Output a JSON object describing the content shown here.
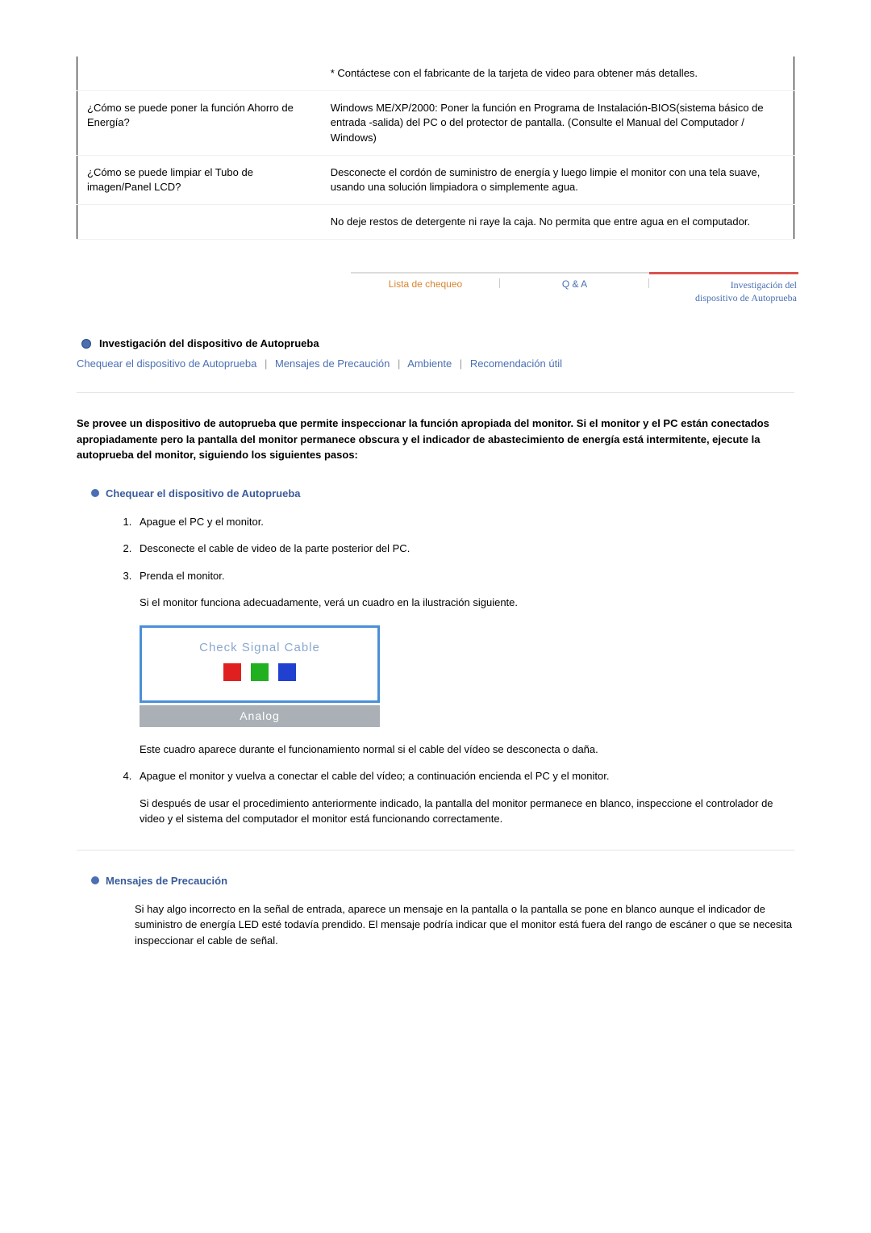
{
  "qa_table": {
    "rows": [
      {
        "q": "",
        "a": "* Contáctese con el fabricante de la tarjeta de video para obtener más detalles."
      },
      {
        "q": "¿Cómo se puede poner la función Ahorro de Energía?",
        "a": "Windows ME/XP/2000: Poner la función en Programa de Instalación-BIOS(sistema básico de entrada -salida) del PC o del protector de pantalla. (Consulte el Manual del Computador / Windows)"
      },
      {
        "q": "¿Cómo se puede limpiar el Tubo de imagen/Panel LCD?",
        "a": "Desconecte el cordón de suministro de energía y luego limpie el monitor con una tela suave, usando una solución limpiadora o simplemente agua."
      },
      {
        "q": "",
        "a": "No deje restos de detergente ni raye la caja. No permita que entre agua en el computador."
      }
    ]
  },
  "tabs": {
    "items": [
      {
        "label": "Lista de chequeo",
        "color": "orange"
      },
      {
        "label": "Q & A",
        "color": "link"
      },
      {
        "label_l1": "Investigación del",
        "label_l2": "dispositivo de Autoprueba",
        "active": true
      }
    ]
  },
  "section_title": "Investigación del dispositivo de Autoprueba",
  "sublinks": [
    "Chequear el dispositivo de Autoprueba",
    "Mensajes de Precaución",
    "Ambiente",
    "Recomendación útil"
  ],
  "intro": "Se provee un dispositivo de autoprueba que permite inspeccionar la función apropiada del monitor. Si el monitor y el PC están conectados apropiadamente pero la pantalla del monitor permanece obscura y el indicador de abastecimiento de energía está intermitente, ejecute la autoprueba del monitor, siguiendo los siguientes pasos:",
  "check_device_title": "Chequear el dispositivo de Autoprueba",
  "steps": {
    "s1": "Apague el PC y el monitor.",
    "s2": "Desconecte el cable de video de la parte posterior del PC.",
    "s3": "Prenda el monitor.",
    "s3_after": "Si el monitor funciona adecuadamente, verá un cuadro en la ilustración siguiente.",
    "box_title": "Check Signal Cable",
    "box_footer": "Analog",
    "box_after": "Este cuadro aparece durante el funcionamiento normal si el cable del vídeo se desconecta o daña.",
    "s4": "Apague el monitor y vuelva a conectar el cable del vídeo; a continuación encienda el PC y el monitor.",
    "s4_after": "Si después de usar el procedimiento anteriormente indicado, la pantalla del monitor permanece en blanco, inspeccione el controlador de video y el sistema del computador el monitor está funcionando correctamente."
  },
  "warnings_title": "Mensajes de Precaución",
  "warnings_body": "Si hay algo incorrecto en la señal de entrada, aparece un mensaje en la pantalla o la pantalla se pone en blanco aunque el indicador de suministro de energía LED esté todavía prendido. El mensaje podría indicar que el monitor está fuera del rango de escáner o que se necesita inspeccionar el cable de señal.",
  "colors": {
    "link": "#4a6fb3",
    "orange": "#d9842f",
    "red_accent": "#d9534f",
    "box_border": "#4a8fd8",
    "analog_bg": "#aab0b6"
  }
}
